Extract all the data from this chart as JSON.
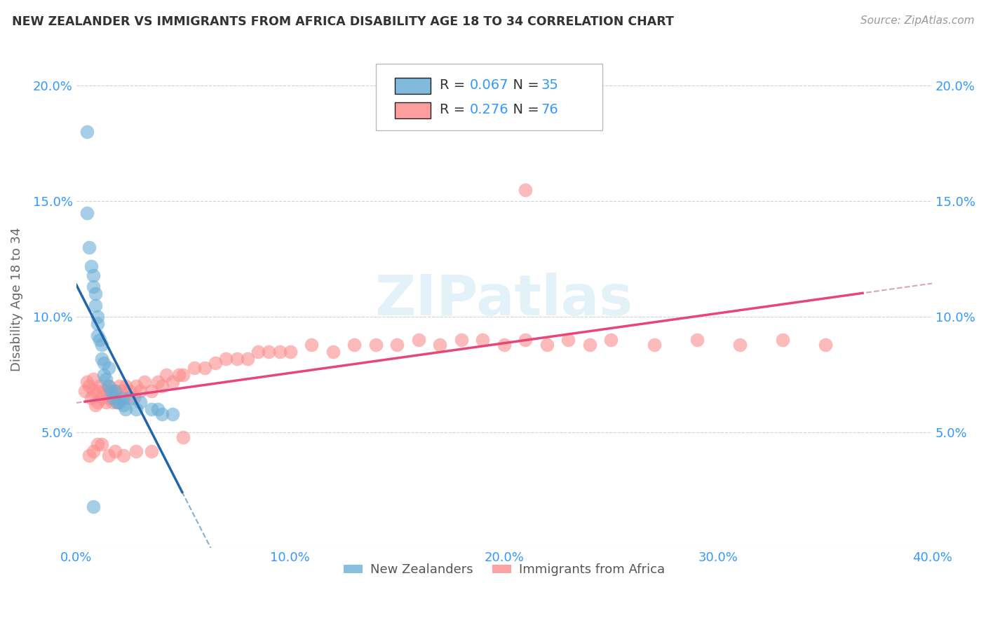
{
  "title": "NEW ZEALANDER VS IMMIGRANTS FROM AFRICA DISABILITY AGE 18 TO 34 CORRELATION CHART",
  "source": "Source: ZipAtlas.com",
  "ylabel": "Disability Age 18 to 34",
  "xlim": [
    0.0,
    0.4
  ],
  "ylim": [
    0.0,
    0.215
  ],
  "x_ticks": [
    0.0,
    0.1,
    0.2,
    0.3,
    0.4
  ],
  "x_tick_labels": [
    "0.0%",
    "10.0%",
    "20.0%",
    "30.0%",
    "40.0%"
  ],
  "y_ticks": [
    0.0,
    0.05,
    0.1,
    0.15,
    0.2
  ],
  "y_tick_labels_left": [
    "",
    "5.0%",
    "10.0%",
    "15.0%",
    "20.0%"
  ],
  "y_tick_labels_right": [
    "",
    "5.0%",
    "10.0%",
    "15.0%",
    "20.0%"
  ],
  "nz_color": "#6baed6",
  "africa_color": "#fc8d8d",
  "nz_line_color": "#2166ac",
  "africa_line_color": "#e8457a",
  "nz_R": 0.067,
  "nz_N": 35,
  "africa_R": 0.276,
  "africa_N": 76,
  "watermark": "ZIPatlas",
  "legend_labels": [
    "New Zealanders",
    "Immigrants from Africa"
  ],
  "nz_scatter_x": [
    0.005,
    0.005,
    0.006,
    0.007,
    0.008,
    0.008,
    0.009,
    0.009,
    0.01,
    0.01,
    0.01,
    0.011,
    0.012,
    0.012,
    0.013,
    0.013,
    0.014,
    0.015,
    0.015,
    0.016,
    0.017,
    0.018,
    0.019,
    0.02,
    0.021,
    0.022,
    0.023,
    0.025,
    0.028,
    0.03,
    0.035,
    0.038,
    0.04,
    0.045,
    0.008
  ],
  "nz_scatter_y": [
    0.18,
    0.145,
    0.13,
    0.122,
    0.118,
    0.113,
    0.11,
    0.105,
    0.1,
    0.097,
    0.092,
    0.09,
    0.088,
    0.082,
    0.08,
    0.075,
    0.073,
    0.078,
    0.07,
    0.068,
    0.065,
    0.068,
    0.063,
    0.063,
    0.065,
    0.062,
    0.06,
    0.065,
    0.06,
    0.063,
    0.06,
    0.06,
    0.058,
    0.058,
    0.018
  ],
  "africa_scatter_x": [
    0.004,
    0.005,
    0.006,
    0.007,
    0.008,
    0.008,
    0.009,
    0.01,
    0.01,
    0.011,
    0.012,
    0.013,
    0.014,
    0.015,
    0.015,
    0.016,
    0.017,
    0.018,
    0.019,
    0.02,
    0.021,
    0.022,
    0.023,
    0.025,
    0.027,
    0.028,
    0.03,
    0.032,
    0.035,
    0.038,
    0.04,
    0.042,
    0.045,
    0.048,
    0.05,
    0.055,
    0.06,
    0.065,
    0.07,
    0.075,
    0.08,
    0.085,
    0.09,
    0.095,
    0.1,
    0.11,
    0.12,
    0.13,
    0.14,
    0.15,
    0.16,
    0.17,
    0.18,
    0.19,
    0.2,
    0.21,
    0.22,
    0.23,
    0.24,
    0.25,
    0.27,
    0.29,
    0.31,
    0.33,
    0.35,
    0.006,
    0.008,
    0.01,
    0.012,
    0.015,
    0.018,
    0.022,
    0.028,
    0.035,
    0.05,
    0.21
  ],
  "africa_scatter_y": [
    0.068,
    0.072,
    0.07,
    0.065,
    0.073,
    0.068,
    0.062,
    0.068,
    0.063,
    0.07,
    0.065,
    0.068,
    0.063,
    0.07,
    0.065,
    0.068,
    0.063,
    0.068,
    0.063,
    0.07,
    0.068,
    0.065,
    0.07,
    0.068,
    0.065,
    0.07,
    0.068,
    0.072,
    0.068,
    0.072,
    0.07,
    0.075,
    0.072,
    0.075,
    0.075,
    0.078,
    0.078,
    0.08,
    0.082,
    0.082,
    0.082,
    0.085,
    0.085,
    0.085,
    0.085,
    0.088,
    0.085,
    0.088,
    0.088,
    0.088,
    0.09,
    0.088,
    0.09,
    0.09,
    0.088,
    0.09,
    0.088,
    0.09,
    0.088,
    0.09,
    0.088,
    0.09,
    0.088,
    0.09,
    0.088,
    0.04,
    0.042,
    0.045,
    0.045,
    0.04,
    0.042,
    0.04,
    0.042,
    0.042,
    0.048,
    0.155
  ]
}
